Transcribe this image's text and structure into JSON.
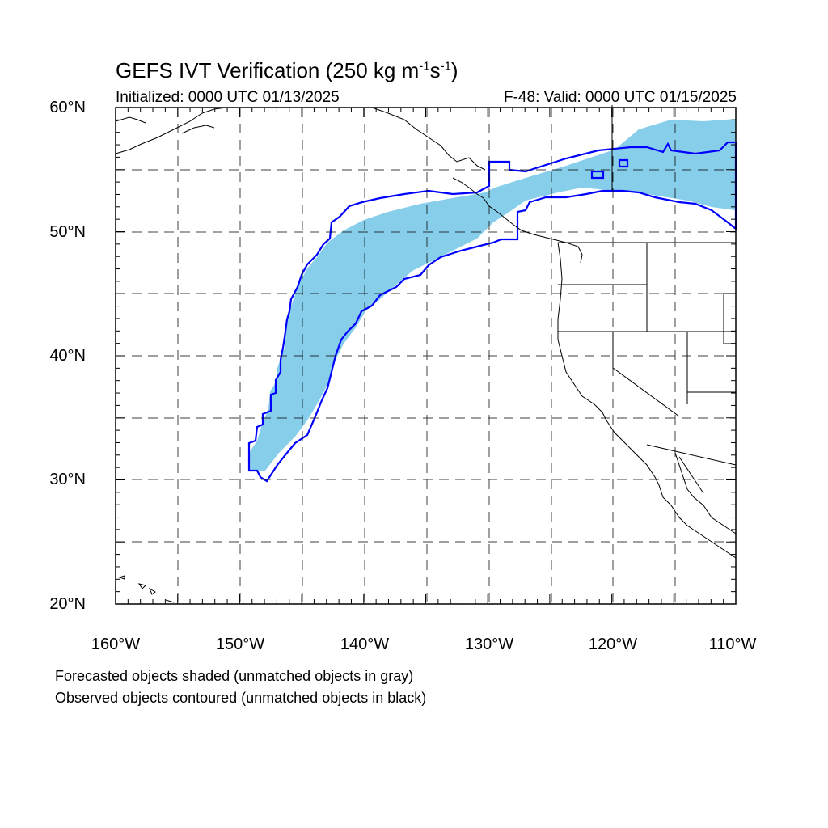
{
  "header": {
    "title_main": "GEFS IVT Verification (250 kg m",
    "title_sup1": "-1",
    "title_mid": "s",
    "title_sup2": "-1",
    "title_end": ")",
    "initialized": "Initialized: 0000 UTC 01/13/2025",
    "valid": "F-48: Valid: 0000 UTC 01/15/2025"
  },
  "axes": {
    "lat_labels": [
      "60°N",
      "50°N",
      "40°N",
      "30°N",
      "20°N"
    ],
    "lon_labels": [
      "160°W",
      "150°W",
      "140°W",
      "130°W",
      "120°W",
      "110°W"
    ],
    "lat_range": [
      20,
      60
    ],
    "lon_range": [
      -160,
      -110
    ]
  },
  "legend": {
    "line1": "Forecasted objects shaded (unmatched objects in gray)",
    "line2": "Observed objects contoured (unmatched objects in black)"
  },
  "colors": {
    "forecast_fill": "#87ceeb",
    "observed_contour": "#0000ff",
    "coastline": "#000000",
    "grid": "#000000"
  }
}
